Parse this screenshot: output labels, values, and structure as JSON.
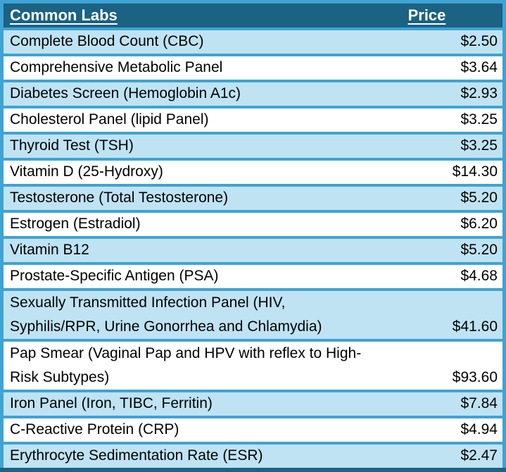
{
  "chart_data": {
    "type": "table",
    "title": "Common Labs",
    "columns": [
      "Common Labs",
      "Price"
    ],
    "rows": [
      [
        "Complete Blood Count (CBC)",
        "$2.50"
      ],
      [
        "Comprehensive Metabolic Panel",
        "$3.64"
      ],
      [
        "Diabetes Screen (Hemoglobin A1c)",
        "$2.93"
      ],
      [
        "Cholesterol Panel (lipid Panel)",
        "$3.25"
      ],
      [
        "Thyroid Test (TSH)",
        "$3.25"
      ],
      [
        "Vitamin D (25-Hydroxy)",
        "$14.30"
      ],
      [
        "Testosterone (Total Testosterone)",
        "$5.20"
      ],
      [
        "Estrogen (Estradiol)",
        "$6.20"
      ],
      [
        "Vitamin B12",
        "$5.20"
      ],
      [
        "Prostate-Specific Antigen (PSA)",
        "$4.68"
      ],
      [
        "Sexually Transmitted Infection Panel (HIV, Syphilis/RPR, Urine Gonorrhea and Chlamydia)",
        "$41.60"
      ],
      [
        "Pap Smear (Vaginal Pap and HPV with reflex to High-Risk Subtypes)",
        "$93.60"
      ],
      [
        "Iron Panel (Iron, TIBC, Ferritin)",
        "$7.84"
      ],
      [
        "C-Reactive Protein (CRP)",
        "$4.94"
      ],
      [
        "Erythrocyte Sedimentation Rate (ESR)",
        "$2.47"
      ]
    ]
  },
  "table": {
    "header": {
      "labs_label": "Common Labs",
      "price_label": "Price"
    },
    "rows": [
      {
        "label": "Complete Blood Count (CBC)",
        "price": "$2.50"
      },
      {
        "label": "Comprehensive Metabolic Panel",
        "price": "$3.64"
      },
      {
        "label": "Diabetes Screen (Hemoglobin A1c)",
        "price": "$2.93"
      },
      {
        "label": "Cholesterol Panel (lipid Panel)",
        "price": "$3.25"
      },
      {
        "label": "Thyroid Test (TSH)",
        "price": "$3.25"
      },
      {
        "label": "Vitamin D (25-Hydroxy)",
        "price": "$14.30"
      },
      {
        "label": "Testosterone (Total Testosterone)",
        "price": "$5.20"
      },
      {
        "label": "Estrogen (Estradiol)",
        "price": "$6.20"
      },
      {
        "label": "Vitamin B12",
        "price": "$5.20"
      },
      {
        "label": "Prostate-Specific Antigen (PSA)",
        "price": "$4.68"
      },
      {
        "label": "Sexually Transmitted Infection Panel (HIV,\nSyphilis/RPR, Urine Gonorrhea and Chlamydia)",
        "price": "$41.60"
      },
      {
        "label": "Pap Smear (Vaginal Pap and HPV with reflex to High-\nRisk Subtypes)",
        "price": "$93.60"
      },
      {
        "label": "Iron Panel (Iron, TIBC, Ferritin)",
        "price": "$7.84"
      },
      {
        "label": "C-Reactive Protein (CRP)",
        "price": "$4.94"
      },
      {
        "label": "Erythrocyte Sedimentation Rate (ESR)",
        "price": "$2.47"
      }
    ]
  },
  "colors": {
    "header_bg": "#1B6283",
    "header_text": "#FFFFFF",
    "grid_border": "#3FA3D4",
    "row_alt_bg": "#BFE3F3",
    "row_bg": "#FFFFFF",
    "row_text": "#000000",
    "bottom_rule": "#1B6283"
  }
}
